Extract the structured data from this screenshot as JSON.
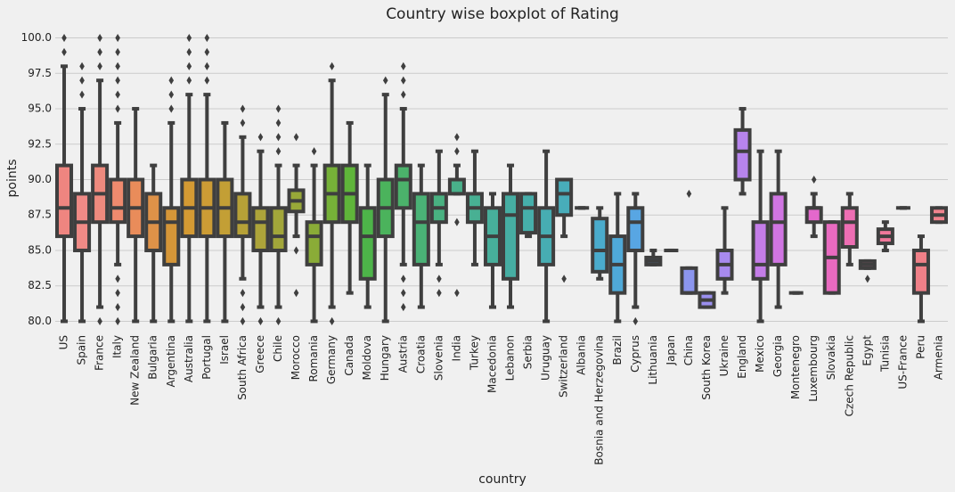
{
  "chart_data": {
    "type": "box",
    "title": "Country wise boxplot of Rating",
    "xlabel": "country",
    "ylabel": "points",
    "categories": [
      "US",
      "Spain",
      "France",
      "Italy",
      "New Zealand",
      "Bulgaria",
      "Argentina",
      "Australia",
      "Portugal",
      "Israel",
      "South Africa",
      "Greece",
      "Chile",
      "Morocco",
      "Romania",
      "Germany",
      "Canada",
      "Moldova",
      "Hungary",
      "Austria",
      "Croatia",
      "Slovenia",
      "India",
      "Turkey",
      "Macedonia",
      "Lebanon",
      "Serbia",
      "Uruguay",
      "Switzerland",
      "Albania",
      "Bosnia and Herzegovina",
      "Brazil",
      "Cyprus",
      "Lithuania",
      "Japan",
      "China",
      "South Korea",
      "Ukraine",
      "England",
      "Mexico",
      "Georgia",
      "Montenegro",
      "Luxembourg",
      "Slovakia",
      "Czech Republic",
      "Egypt",
      "Tunisia",
      "US-France",
      "Peru",
      "Armenia"
    ],
    "whislo": [
      80,
      80,
      81,
      84,
      80,
      80,
      80,
      80,
      80,
      80,
      83,
      81,
      81,
      86,
      80,
      81,
      82,
      81,
      80,
      84,
      81,
      84,
      89,
      84,
      81,
      81,
      86,
      80,
      86,
      88,
      83,
      80,
      81,
      84,
      85,
      82,
      81,
      82,
      89,
      80,
      81,
      82,
      86,
      82,
      84,
      83.75,
      85,
      88,
      80,
      87
    ],
    "q1": [
      86,
      85,
      87,
      87,
      86,
      85,
      84,
      86,
      86,
      86,
      86,
      85,
      85,
      87.75,
      84,
      87,
      87,
      83,
      86,
      88,
      84,
      87,
      89,
      87,
      84,
      83,
      86.25,
      84,
      87.5,
      88,
      83.5,
      82,
      85,
      84,
      85,
      82,
      81,
      83,
      90,
      83,
      84,
      82,
      87,
      82,
      85.25,
      83.75,
      85.5,
      88,
      82,
      87
    ],
    "median": [
      88,
      87,
      89,
      88,
      88,
      87,
      87,
      88,
      88,
      88,
      87,
      87,
      86,
      88.5,
      86,
      89,
      89,
      86,
      88,
      90,
      87,
      88,
      90,
      88,
      86,
      87.5,
      88,
      86,
      89,
      88,
      85,
      84,
      87,
      84.25,
      85,
      82,
      81.5,
      84,
      92,
      84,
      87,
      82,
      88,
      84.5,
      87,
      84,
      86,
      88,
      84,
      87.5
    ],
    "q3": [
      91,
      89,
      91,
      90,
      90,
      89,
      88,
      90,
      90,
      90,
      89,
      88,
      88,
      89.25,
      87,
      91,
      91,
      88,
      90,
      91,
      89,
      89,
      90,
      89,
      88,
      89,
      89,
      88,
      90,
      88,
      87.25,
      86,
      88,
      84.5,
      85,
      83.75,
      82,
      85,
      93.5,
      87,
      89,
      82,
      88,
      87,
      88,
      84.25,
      86.5,
      88,
      85,
      88
    ],
    "whishi": [
      98,
      95,
      97,
      94,
      95,
      91,
      94,
      96,
      96,
      94,
      93,
      92,
      91,
      91,
      91,
      97,
      94,
      91,
      96,
      95,
      91,
      92,
      91,
      92,
      89,
      91,
      89,
      92,
      90,
      88,
      88,
      89,
      89,
      85,
      85,
      83.75,
      82,
      88,
      95,
      92,
      92,
      82,
      89,
      87,
      89,
      84.25,
      87,
      88,
      86,
      88
    ],
    "fliers": [
      [
        99,
        100
      ],
      [
        96,
        97,
        98
      ],
      [
        80,
        98,
        99,
        100
      ],
      [
        80,
        81,
        82,
        83,
        95,
        96,
        97,
        98,
        99,
        100
      ],
      [],
      [],
      [
        95,
        96,
        97
      ],
      [
        97,
        98,
        99,
        100
      ],
      [
        97,
        98,
        99,
        100
      ],
      [],
      [
        80,
        81,
        82,
        94,
        95
      ],
      [
        80,
        93
      ],
      [
        80,
        92,
        93,
        94,
        95
      ],
      [
        82,
        85,
        93
      ],
      [
        92
      ],
      [
        80,
        98
      ],
      [],
      [],
      [
        97
      ],
      [
        81,
        82,
        83,
        96,
        97,
        98
      ],
      [],
      [
        82,
        83
      ],
      [
        82,
        87,
        92,
        93
      ],
      [],
      [],
      [],
      [],
      [],
      [
        83
      ],
      [],
      [],
      [],
      [
        80
      ],
      [],
      [],
      [
        89
      ],
      [],
      [],
      [],
      [],
      [],
      [],
      [
        90
      ],
      [],
      [],
      [
        83
      ],
      [],
      [],
      [],
      []
    ],
    "colors": [
      "#ef8580",
      "#f08a86",
      "#ee8a7e",
      "#ef8a6e",
      "#e98c5a",
      "#de9248",
      "#d59638",
      "#d49a33",
      "#cc9c35",
      "#c39f35",
      "#b6a137",
      "#ada43a",
      "#a2a63a",
      "#98a838",
      "#8aac37",
      "#76b138",
      "#5fb53a",
      "#4db449",
      "#4bb35c",
      "#4bb26b",
      "#4ab276",
      "#49b181",
      "#49b08a",
      "#48b093",
      "#47af9b",
      "#46aea3",
      "#46aeaa",
      "#47adb2",
      "#48adba",
      "#49acc2",
      "#4aabcc",
      "#4fa9d8",
      "#58a6e3",
      "#68a0ea",
      "#7a9bed",
      "#8b95ee",
      "#9a8fee",
      "#a88aee",
      "#b784ed",
      "#c47de8",
      "#d075e2",
      "#dc6ed8",
      "#e468cc",
      "#e96ac0",
      "#ed6eb3",
      "#ef73a6",
      "#f0789a",
      "#f07d90",
      "#f08088",
      "#f0838e"
    ],
    "ylim": [
      79.4,
      100.6
    ],
    "yticks": [
      {
        "value": 80,
        "label": "80.0"
      },
      82.5,
      {
        "value": 85,
        "label": "85.0"
      },
      87.5,
      {
        "value": 90,
        "label": "90.0"
      },
      92.5,
      {
        "value": 95,
        "label": "95.0"
      },
      97.5,
      {
        "value": 100,
        "label": "100.0"
      }
    ],
    "grid": true
  }
}
